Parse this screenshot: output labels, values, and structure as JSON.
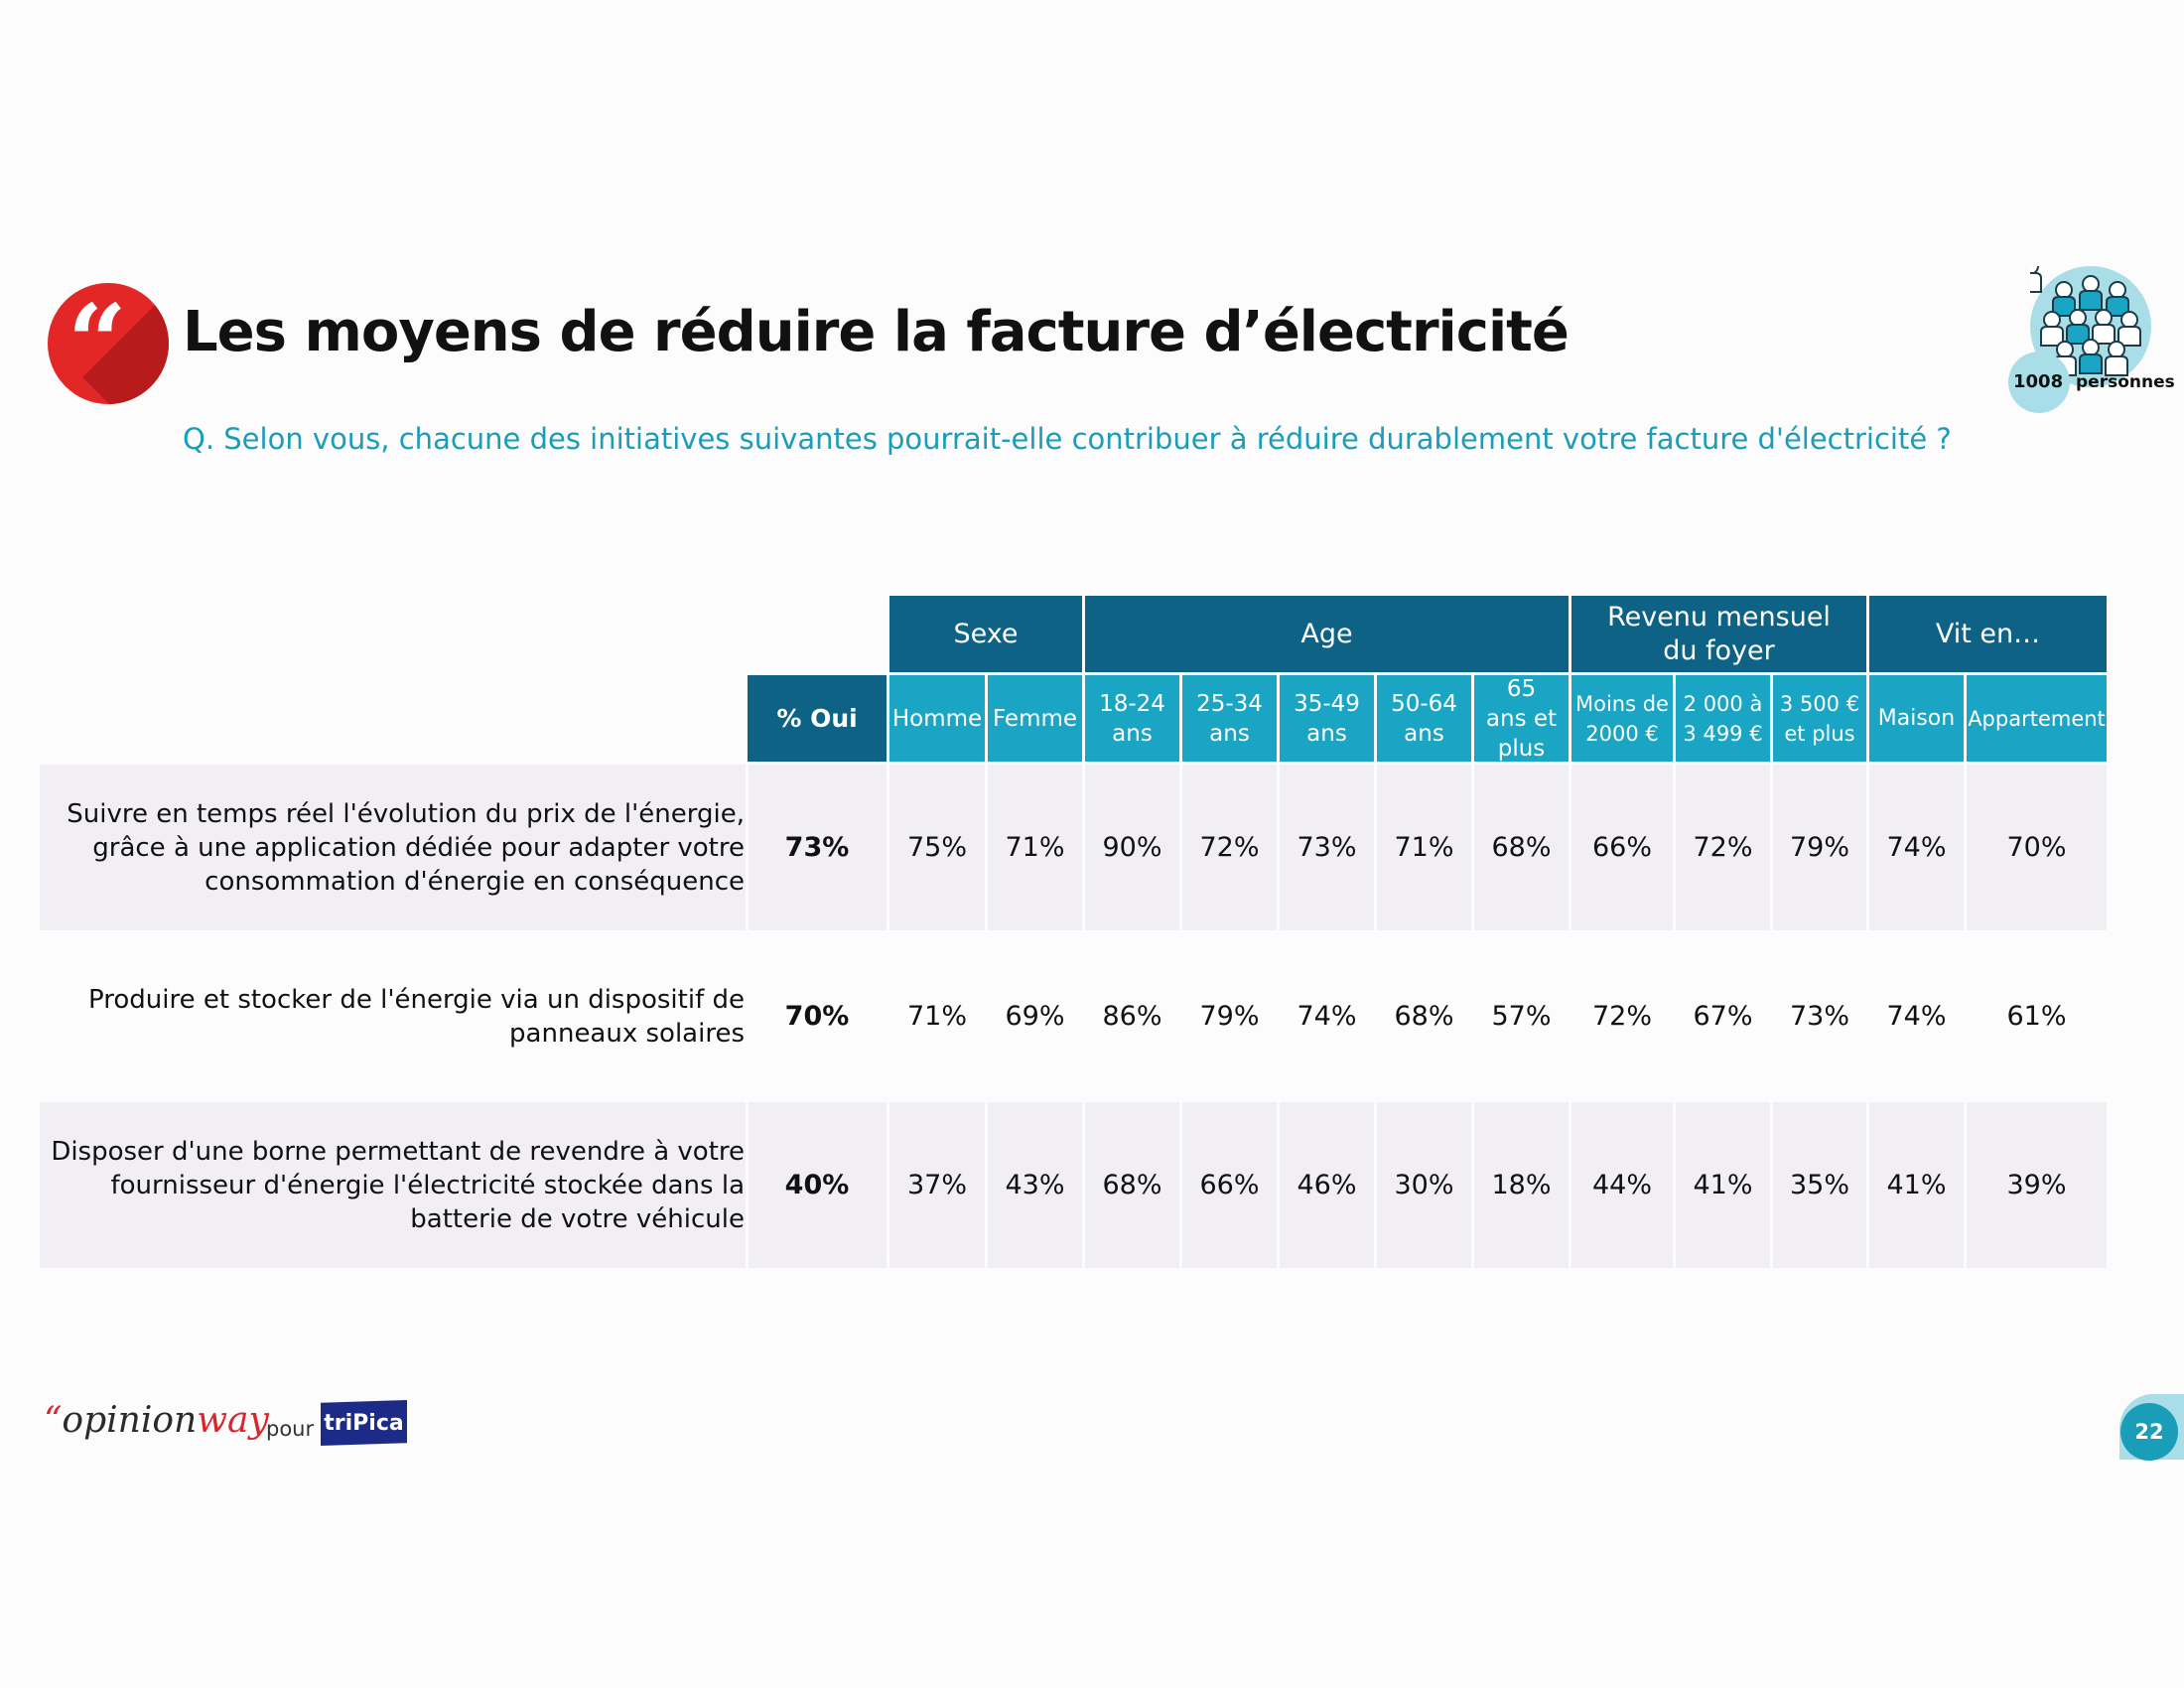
{
  "title": "Les moyens de réduire la facture d’électricité",
  "question": "Q. Selon vous, chacune des initiatives suivantes pourrait-elle contribuer à réduire durablement votre facture d'électricité ?",
  "sample": {
    "count": "1008",
    "unit": "personnes"
  },
  "quote_mark": "“",
  "colors": {
    "accent": "#1a9db8",
    "group_header": "#0e6285",
    "sub_header": "#1aa5c4",
    "brand_red": "#e32626",
    "row_shade": "#f1eff4"
  },
  "table": {
    "total_header": "% Oui",
    "groups": [
      {
        "label": "Sexe"
      },
      {
        "label": "Age"
      },
      {
        "label": "Revenu mensuel du foyer"
      },
      {
        "label": "Vit en…"
      }
    ],
    "columns": [
      {
        "label": "Homme"
      },
      {
        "label": "Femme"
      },
      {
        "label": "18-24 ans"
      },
      {
        "label": "25-34 ans"
      },
      {
        "label": "35-49 ans"
      },
      {
        "label": "50-64 ans"
      },
      {
        "label": "65 ans et plus"
      },
      {
        "label": "Moins de 2000 €"
      },
      {
        "label": "2 000 à 3 499 €"
      },
      {
        "label": "3 500 € et plus"
      },
      {
        "label": "Maison"
      },
      {
        "label": "Appartement"
      }
    ],
    "rows": [
      {
        "label": "Suivre en temps réel l'évolution du prix de l'énergie, grâce à une application dédiée pour adapter votre consommation d'énergie en conséquence",
        "total": "73%",
        "values": [
          "75%",
          "71%",
          "90%",
          "72%",
          "73%",
          "71%",
          "68%",
          "66%",
          "72%",
          "79%",
          "74%",
          "70%"
        ]
      },
      {
        "label": "Produire et stocker de l'énergie via un dispositif de panneaux solaires",
        "total": "70%",
        "values": [
          "71%",
          "69%",
          "86%",
          "79%",
          "74%",
          "68%",
          "57%",
          "72%",
          "67%",
          "73%",
          "74%",
          "61%"
        ]
      },
      {
        "label": "Disposer d'une borne permettant de revendre à votre fournisseur d'énergie l'électricité stockée dans la batterie de votre véhicule",
        "total": "40%",
        "values": [
          "37%",
          "43%",
          "68%",
          "66%",
          "46%",
          "30%",
          "18%",
          "44%",
          "41%",
          "35%",
          "41%",
          "39%"
        ]
      }
    ]
  },
  "footer": {
    "logo_quote": "“",
    "logo_opinion": "opinion",
    "logo_way": "way",
    "pour": "pour",
    "client_logo": "triPica",
    "page_number": "22"
  }
}
